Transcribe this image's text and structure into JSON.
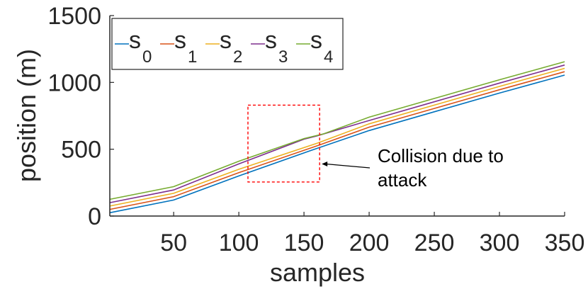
{
  "chart_data": {
    "type": "line",
    "title": "",
    "xlabel": "samples",
    "ylabel": "position (m)",
    "xlim": [
      1,
      350
    ],
    "ylim": [
      0,
      1500
    ],
    "x_ticks": [
      50,
      100,
      150,
      200,
      250,
      300,
      350
    ],
    "y_ticks": [
      0,
      500,
      1000,
      1500
    ],
    "grid": false,
    "legend_placement": "top-left",
    "series": [
      {
        "name": "s",
        "subscript": "0",
        "color": "#0072BD",
        "x": [
          1,
          50,
          100,
          155,
          200,
          250,
          300,
          350
        ],
        "y": [
          25,
          120,
          300,
          490,
          640,
          780,
          920,
          1055
        ]
      },
      {
        "name": "s",
        "subscript": "1",
        "color": "#D95319",
        "x": [
          1,
          50,
          100,
          160,
          200,
          250,
          300,
          350
        ],
        "y": [
          50,
          145,
          325,
          525,
          665,
          805,
          945,
          1080
        ]
      },
      {
        "name": "s",
        "subscript": "2",
        "color": "#EDB120",
        "x": [
          1,
          50,
          100,
          160,
          200,
          250,
          300,
          350
        ],
        "y": [
          75,
          170,
          350,
          545,
          690,
          830,
          970,
          1105
        ]
      },
      {
        "name": "s",
        "subscript": "3",
        "color": "#7E2F8E",
        "x": [
          1,
          50,
          100,
          150,
          160,
          200,
          250,
          300,
          350
        ],
        "y": [
          100,
          195,
          390,
          575,
          600,
          715,
          855,
          995,
          1130
        ]
      },
      {
        "name": "s",
        "subscript": "4",
        "color": "#77AC30",
        "x": [
          1,
          50,
          100,
          150,
          165,
          200,
          250,
          300,
          350
        ],
        "y": [
          125,
          220,
          410,
          580,
          615,
          740,
          880,
          1020,
          1155
        ]
      }
    ],
    "annotations": [
      {
        "text_line1": "Collision due to",
        "text_line2": "attack",
        "box": {
          "x": [
            107,
            162
          ],
          "y": [
            255,
            830
          ]
        },
        "arrow_to": {
          "x": 162,
          "y": 395
        }
      }
    ]
  }
}
